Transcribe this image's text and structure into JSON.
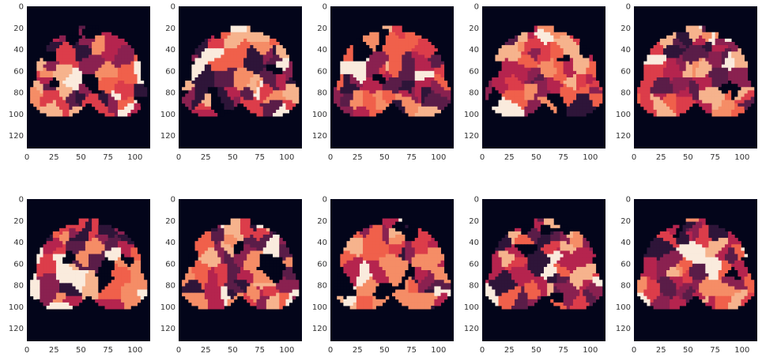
{
  "chart_data": {
    "type": "heatmap",
    "title": "",
    "layout": {
      "rows": 2,
      "cols": 5
    },
    "colormap": [
      "#03051a",
      "#2e1539",
      "#5a1d48",
      "#8a2150",
      "#b5244e",
      "#dc3d4a",
      "#f0604b",
      "#f58d66",
      "#f6b38d",
      "#faebdd"
    ],
    "background_color": "#03051a",
    "x_ticks": [
      0,
      25,
      50,
      75,
      100
    ],
    "y_ticks": [
      0,
      20,
      40,
      60,
      80,
      100,
      120
    ],
    "xlim": [
      0,
      114
    ],
    "ylim": [
      0,
      132
    ],
    "grid": false,
    "panels": [
      {
        "row": 0,
        "col": 0,
        "description": "brain parcellation, mostly light/cream regions"
      },
      {
        "row": 0,
        "col": 1,
        "description": "brain parcellation, cream with dark central regions"
      },
      {
        "row": 0,
        "col": 2,
        "description": "brain parcellation, mixed purple/orange, lower right cut"
      },
      {
        "row": 0,
        "col": 3,
        "description": "brain parcellation, mostly peach/salmon"
      },
      {
        "row": 0,
        "col": 4,
        "description": "brain parcellation, dark purple dominant"
      },
      {
        "row": 1,
        "col": 0,
        "description": "brain parcellation, cream and peach"
      },
      {
        "row": 1,
        "col": 1,
        "description": "brain parcellation, purple/orange, sparse bottom"
      },
      {
        "row": 1,
        "col": 2,
        "description": "brain parcellation, cream and orange"
      },
      {
        "row": 1,
        "col": 3,
        "description": "brain parcellation, peach with red right lobe"
      },
      {
        "row": 1,
        "col": 4,
        "description": "brain parcellation, orange/red with dark bottom"
      }
    ]
  }
}
